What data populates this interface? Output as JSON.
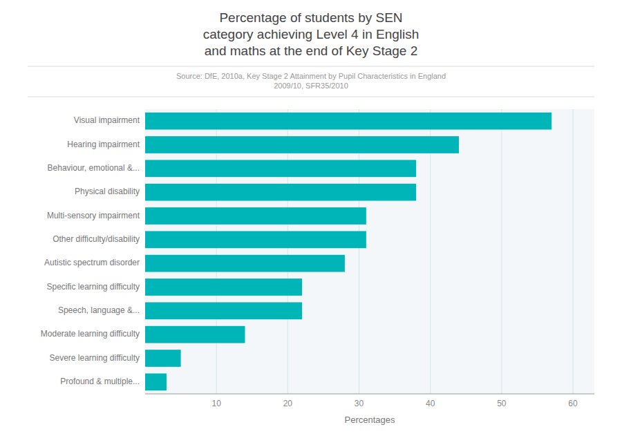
{
  "chart_data": {
    "type": "bar",
    "orientation": "horizontal",
    "title": "Percentage of students by SEN\ncategory achieving Level 4 in English\nand maths at the end of Key Stage 2",
    "source": "Source: DfE, 2010a, Key Stage 2 Attainment by Pupil Characteristics in England\n2009/10, SFR35/2010",
    "xlabel": "Percentages",
    "categories": [
      "Profound & multiple...",
      "Severe learning difficulty",
      "Moderate learning difficulty",
      "Speech, language &...",
      "Specific learning difficulty",
      "Autistic spectrum disorder",
      "Other difficulty/disability",
      "Multi-sensory impairment",
      "Physical disability",
      "Behaviour, emotional &...",
      "Hearing impairment",
      "Visual impairment"
    ],
    "values": [
      3,
      5,
      14,
      22,
      22,
      28,
      31,
      31,
      38,
      38,
      44,
      57
    ],
    "color": "#00B5B8",
    "xlim": [
      0,
      63
    ],
    "xticks": [
      10,
      20,
      30,
      40,
      50,
      60
    ],
    "grid": true
  }
}
